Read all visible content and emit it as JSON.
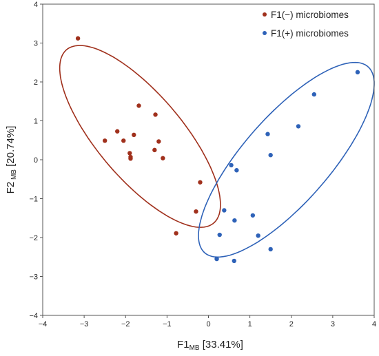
{
  "chart_data": {
    "type": "scatter",
    "xlabel_main": "F1",
    "xlabel_sub": "MB",
    "xlabel_rest": " [33.41%]",
    "ylabel_main": "F2",
    "ylabel_sub": " MB",
    "ylabel_rest": " [20.74%]",
    "xlim": [
      -4,
      4
    ],
    "ylim": [
      -4,
      4
    ],
    "xticks": [
      -4,
      -3,
      -2,
      -1,
      0,
      1,
      2,
      3,
      4
    ],
    "yticks": [
      -4,
      -3,
      -2,
      -1,
      0,
      1,
      2,
      3,
      4
    ],
    "xtick_labels": [
      "−4",
      "−3",
      "−2",
      "−1",
      "0",
      "1",
      "2",
      "3",
      "4"
    ],
    "ytick_labels": [
      "−4",
      "−3",
      "−2",
      "−1",
      "0",
      "1",
      "2",
      "3",
      "4"
    ],
    "grid": false,
    "legend_position": "top-right",
    "series": [
      {
        "name": "F1(−) microbiomes",
        "color": "#a0301c",
        "points": [
          [
            -3.15,
            3.12
          ],
          [
            -2.2,
            0.73
          ],
          [
            -2.5,
            0.49
          ],
          [
            -2.05,
            0.49
          ],
          [
            -1.68,
            1.39
          ],
          [
            -1.8,
            0.64
          ],
          [
            -1.9,
            0.17
          ],
          [
            -1.88,
            0.07
          ],
          [
            -1.88,
            0.03
          ],
          [
            -1.28,
            1.16
          ],
          [
            -1.2,
            0.47
          ],
          [
            -1.3,
            0.25
          ],
          [
            -1.1,
            0.04
          ],
          [
            -0.2,
            -0.58
          ],
          [
            -0.3,
            -1.33
          ],
          [
            -0.78,
            -1.89
          ]
        ],
        "ellipse": {
          "cx": -1.65,
          "cy": 0.6,
          "rx": 2.85,
          "ry": 1.05,
          "angle_deg": -52
        }
      },
      {
        "name": "F1(+) microbiomes",
        "color": "#2e62b8",
        "points": [
          [
            3.6,
            2.25
          ],
          [
            2.55,
            1.68
          ],
          [
            2.17,
            0.86
          ],
          [
            1.43,
            0.66
          ],
          [
            1.5,
            0.12
          ],
          [
            0.55,
            -0.14
          ],
          [
            0.68,
            -0.27
          ],
          [
            0.38,
            -1.3
          ],
          [
            1.07,
            -1.43
          ],
          [
            0.63,
            -1.56
          ],
          [
            0.27,
            -1.93
          ],
          [
            1.2,
            -1.95
          ],
          [
            1.5,
            -2.3
          ],
          [
            0.2,
            -2.55
          ],
          [
            0.62,
            -2.6
          ]
        ],
        "ellipse": {
          "cx": 1.88,
          "cy": 0.0,
          "rx": 3.1,
          "ry": 1.07,
          "angle_deg": 51
        }
      }
    ]
  }
}
